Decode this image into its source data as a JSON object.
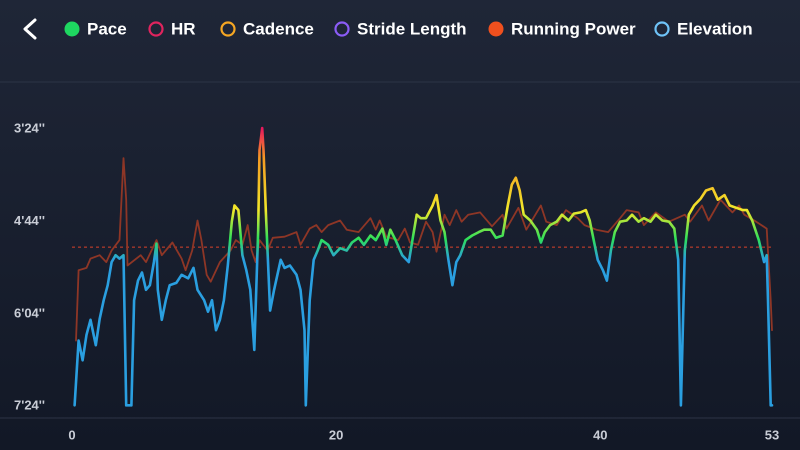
{
  "chart_data": {
    "type": "line",
    "y_inverted": true,
    "xlim": [
      0,
      53
    ],
    "xticks": [
      0,
      20,
      40,
      53
    ],
    "ylim": [
      171,
      455
    ],
    "yticks": [
      {
        "value": 204,
        "label": "3'24''"
      },
      {
        "value": 284,
        "label": "4'44''"
      },
      {
        "value": 364,
        "label": "6'04''"
      },
      {
        "value": 444,
        "label": "7'24''"
      }
    ],
    "grid": false,
    "reference_line": {
      "value": 307,
      "color": "#d9412b",
      "style": "dashed"
    },
    "series": [
      {
        "name": "Pace",
        "color": "#1ed760",
        "marker": "filled",
        "gradient": [
          {
            "value": 204,
            "color": "#e8175d"
          },
          {
            "value": 230,
            "color": "#f59a23"
          },
          {
            "value": 275,
            "color": "#f2e82a"
          },
          {
            "value": 300,
            "color": "#2ee05a"
          },
          {
            "value": 318,
            "color": "#2a9fe0"
          }
        ],
        "x": [
          0.2,
          0.5,
          0.8,
          1.1,
          1.4,
          1.8,
          2.1,
          2.4,
          2.7,
          3.0,
          3.3,
          3.6,
          3.9,
          4.1,
          4.5,
          4.7,
          5.0,
          5.3,
          5.6,
          5.9,
          6.2,
          6.4,
          6.5,
          6.8,
          7.1,
          7.4,
          7.9,
          8.3,
          8.8,
          9.2,
          9.5,
          10.0,
          10.3,
          10.6,
          10.9,
          11.2,
          11.5,
          11.8,
          12.1,
          12.3,
          12.6,
          12.9,
          13.2,
          13.5,
          13.8,
          14.1,
          14.2,
          14.4,
          14.5,
          14.7,
          15.0,
          15.3,
          15.8,
          16.1,
          16.5,
          17.0,
          17.3,
          17.6,
          17.7,
          18.0,
          18.3,
          18.6,
          18.9,
          19.4,
          19.8,
          20.3,
          20.8,
          21.2,
          21.7,
          22.1,
          22.6,
          23.0,
          23.5,
          23.8,
          24.1,
          24.5,
          25.0,
          25.5,
          25.8,
          26.1,
          26.4,
          26.8,
          27.3,
          27.6,
          27.9,
          28.2,
          28.5,
          28.8,
          29.1,
          29.4,
          29.8,
          30.3,
          30.8,
          31.2,
          31.7,
          32.1,
          32.6,
          33.0,
          33.3,
          33.6,
          33.9,
          34.2,
          34.7,
          35.2,
          35.5,
          35.8,
          36.2,
          36.7,
          37.1,
          37.6,
          38.0,
          38.5,
          38.9,
          39.2,
          39.5,
          39.8,
          40.2,
          40.5,
          40.8,
          41.1,
          41.5,
          42.0,
          42.4,
          42.9,
          43.3,
          43.8,
          44.2,
          44.7,
          45.2,
          45.6,
          45.9,
          46.1,
          46.4,
          46.7,
          47.1,
          47.6,
          48.0,
          48.5,
          48.9,
          49.4,
          49.8,
          50.3,
          50.8,
          51.1,
          51.5,
          52.0,
          52.4,
          52.6,
          52.7,
          52.9,
          53.0
        ],
        "values": [
          444,
          388,
          405,
          383,
          370,
          392,
          369,
          353,
          340,
          320,
          314,
          317,
          314,
          444,
          444,
          353,
          336,
          329,
          344,
          340,
          320,
          304,
          344,
          370,
          353,
          340,
          338,
          331,
          334,
          325,
          344,
          353,
          363,
          353,
          379,
          370,
          353,
          323,
          285,
          271,
          275,
          314,
          327,
          344,
          396,
          292,
          223,
          204,
          223,
          284,
          362,
          344,
          318,
          325,
          323,
          331,
          344,
          379,
          444,
          353,
          318,
          310,
          301,
          305,
          314,
          308,
          310,
          303,
          299,
          305,
          297,
          301,
          291,
          305,
          292,
          301,
          314,
          320,
          299,
          279,
          282,
          282,
          271,
          262,
          284,
          294,
          318,
          340,
          320,
          314,
          301,
          297,
          294,
          292,
          292,
          299,
          297,
          271,
          253,
          247,
          258,
          279,
          284,
          292,
          303,
          294,
          288,
          285,
          279,
          284,
          278,
          277,
          275,
          284,
          301,
          318,
          327,
          336,
          310,
          294,
          285,
          284,
          279,
          285,
          282,
          285,
          279,
          284,
          285,
          291,
          318,
          444,
          310,
          279,
          271,
          265,
          258,
          256,
          266,
          262,
          271,
          273,
          275,
          275,
          284,
          301,
          320,
          314,
          353,
          444,
          444
        ]
      },
      {
        "name": "HR",
        "color": "#e0245e",
        "marker": "ring",
        "line_color": "#8e3626",
        "x": [
          0.3,
          0.5,
          1.1,
          1.4,
          2.1,
          2.6,
          3.0,
          3.6,
          3.9,
          4.1,
          4.2,
          5.2,
          5.6,
          6.4,
          6.8,
          7.6,
          8.3,
          8.6,
          9.1,
          9.5,
          9.8,
          10.2,
          10.5,
          11.2,
          12.0,
          12.4,
          12.9,
          13.3,
          13.6,
          13.9,
          14.2,
          14.8,
          15.2,
          16.1,
          17.0,
          17.3,
          18.0,
          18.5,
          18.9,
          19.4,
          20.3,
          20.8,
          21.7,
          22.6,
          23.0,
          23.3,
          23.8,
          24.7,
          25.2,
          25.6,
          26.2,
          26.8,
          27.3,
          27.6,
          28.2,
          28.6,
          29.1,
          29.5,
          30.0,
          30.9,
          31.8,
          32.6,
          32.9,
          33.8,
          34.4,
          35.5,
          35.9,
          36.7,
          37.4,
          38.3,
          38.8,
          39.7,
          40.6,
          41.5,
          42.0,
          42.9,
          43.3,
          44.2,
          45.2,
          46.4,
          46.8,
          47.7,
          48.2,
          49.1,
          50.0,
          50.5,
          50.9,
          51.8,
          52.6,
          52.9,
          53.0
        ],
        "values": [
          388,
          327,
          325,
          317,
          314,
          320,
          310,
          301,
          230,
          266,
          323,
          314,
          320,
          301,
          314,
          303,
          317,
          327,
          310,
          284,
          301,
          331,
          337,
          320,
          310,
          301,
          305,
          288,
          310,
          320,
          301,
          310,
          299,
          298,
          294,
          305,
          291,
          288,
          294,
          288,
          284,
          292,
          294,
          282,
          292,
          284,
          298,
          301,
          291,
          303,
          305,
          285,
          294,
          311,
          279,
          288,
          275,
          285,
          279,
          277,
          289,
          279,
          291,
          273,
          292,
          271,
          285,
          288,
          275,
          282,
          288,
          292,
          294,
          282,
          275,
          277,
          288,
          277,
          285,
          279,
          285,
          271,
          284,
          266,
          277,
          271,
          279,
          285,
          291,
          353,
          379
        ]
      },
      {
        "name": "Cadence",
        "color": "#f5a623",
        "marker": "ring"
      },
      {
        "name": "Stride Length",
        "color": "#8b5cf6",
        "marker": "ring"
      },
      {
        "name": "Running Power",
        "color": "#f0501e",
        "marker": "filled"
      },
      {
        "name": "Elevation",
        "color": "#6fc3f7",
        "marker": "ring"
      }
    ]
  }
}
